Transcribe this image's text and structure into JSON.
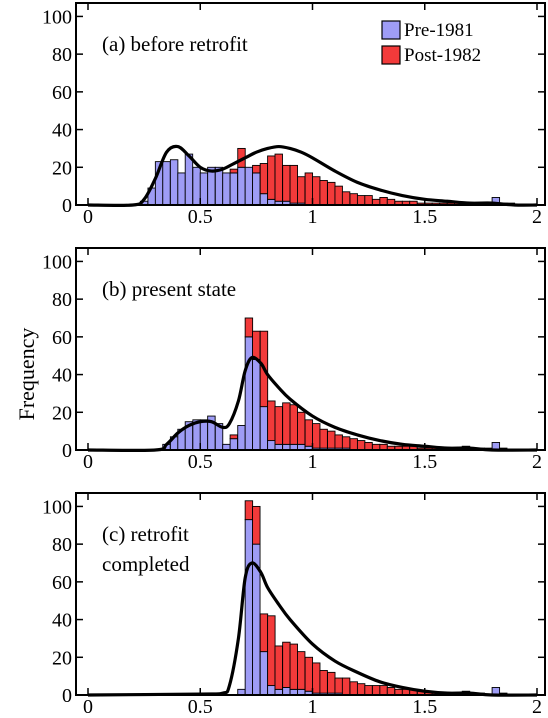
{
  "ylabel": "Frequency",
  "legend": [
    {
      "label": "Pre-1981",
      "color": "#9e9cf5"
    },
    {
      "label": "Post-1982",
      "color": "#f23a3a"
    }
  ],
  "curve_color": "#000000",
  "chart_data": [
    {
      "type": "bar",
      "stacked": true,
      "annotation": [
        "(a) before retrofit"
      ],
      "xlim": [
        0,
        2
      ],
      "ylim": [
        0,
        105
      ],
      "xticks": [
        "0",
        "0.5",
        "1",
        "1.5",
        "2"
      ],
      "yticks": [
        "0",
        "20",
        "40",
        "60",
        "80",
        "100"
      ],
      "bin_width": 0.0333,
      "bin_starts": [
        0.2,
        0.233,
        0.267,
        0.3,
        0.333,
        0.367,
        0.4,
        0.433,
        0.467,
        0.5,
        0.533,
        0.567,
        0.6,
        0.633,
        0.667,
        0.7,
        0.733,
        0.767,
        0.8,
        0.833,
        0.867,
        0.9,
        0.933,
        0.967,
        1.0,
        1.033,
        1.067,
        1.1,
        1.133,
        1.167,
        1.2,
        1.233,
        1.267,
        1.3,
        1.333,
        1.367,
        1.4,
        1.433,
        1.467,
        1.5,
        1.533,
        1.567,
        1.6,
        1.633,
        1.667,
        1.7,
        1.733,
        1.767,
        1.8,
        1.833,
        1.867,
        1.9
      ],
      "series": [
        {
          "name": "Pre-1981",
          "values": [
            0,
            2,
            9,
            23,
            23,
            24,
            17,
            27,
            20,
            17,
            20,
            20,
            17,
            17,
            20,
            20,
            17,
            6,
            3,
            2,
            2,
            1,
            1,
            0,
            0,
            0,
            0,
            0,
            0,
            0,
            0,
            0,
            0,
            0,
            0,
            0,
            0,
            0,
            0,
            0,
            0,
            0,
            0,
            0,
            0,
            0,
            0,
            0,
            4,
            1,
            0,
            0
          ]
        },
        {
          "name": "Post-1982",
          "values": [
            0,
            0,
            0,
            0,
            0,
            0,
            0,
            0,
            0,
            0,
            0,
            0,
            0,
            2,
            10,
            0,
            4,
            16,
            23,
            25,
            19,
            20,
            14,
            17,
            15,
            13,
            12,
            10,
            7,
            6,
            5,
            5,
            3,
            4,
            3,
            2,
            2,
            2,
            1,
            1,
            1,
            1,
            1,
            1,
            1,
            1,
            0,
            0,
            0,
            0,
            1,
            0
          ]
        }
      ],
      "fit_curve": {
        "x": [
          0,
          0.2,
          0.25,
          0.3,
          0.35,
          0.4,
          0.45,
          0.5,
          0.55,
          0.6,
          0.65,
          0.7,
          0.75,
          0.8,
          0.85,
          0.9,
          0.95,
          1.0,
          1.1,
          1.2,
          1.3,
          1.4,
          1.5,
          1.6,
          1.7,
          1.8,
          1.9,
          2.0
        ],
        "y": [
          0,
          0,
          3,
          14,
          28,
          31,
          26,
          20,
          18,
          19,
          22,
          25,
          28,
          30,
          31,
          30,
          28,
          25,
          18,
          12,
          8,
          5,
          3,
          2,
          1,
          1,
          0,
          0
        ]
      }
    },
    {
      "type": "bar",
      "stacked": true,
      "annotation": [
        "(b) present state"
      ],
      "xlim": [
        0,
        2
      ],
      "ylim": [
        0,
        105
      ],
      "xticks": [
        "0",
        "0.5",
        "1",
        "1.5",
        "2"
      ],
      "yticks": [
        "0",
        "20",
        "40",
        "60",
        "80",
        "100"
      ],
      "bin_width": 0.0333,
      "bin_starts": [
        0.333,
        0.367,
        0.4,
        0.433,
        0.467,
        0.5,
        0.533,
        0.567,
        0.6,
        0.633,
        0.667,
        0.7,
        0.733,
        0.767,
        0.8,
        0.833,
        0.867,
        0.9,
        0.933,
        0.967,
        1.0,
        1.033,
        1.067,
        1.1,
        1.133,
        1.167,
        1.2,
        1.233,
        1.267,
        1.3,
        1.333,
        1.367,
        1.4,
        1.433,
        1.467,
        1.5,
        1.533,
        1.567,
        1.6,
        1.633,
        1.667,
        1.7,
        1.733,
        1.767,
        1.8,
        1.833,
        1.867,
        1.9
      ],
      "series": [
        {
          "name": "Pre-1981",
          "values": [
            3,
            7,
            11,
            15,
            16,
            16,
            18,
            14,
            3,
            6,
            13,
            60,
            48,
            23,
            5,
            3,
            3,
            3,
            3,
            2,
            1,
            1,
            1,
            1,
            1,
            0,
            0,
            0,
            0,
            0,
            0,
            0,
            0,
            0,
            0,
            0,
            0,
            0,
            0,
            0,
            0,
            0,
            0,
            0,
            4,
            1,
            0,
            0
          ]
        },
        {
          "name": "Post-1982",
          "values": [
            0,
            0,
            0,
            0,
            0,
            0,
            0,
            0,
            0,
            2,
            0,
            10,
            15,
            40,
            21,
            20,
            22,
            21,
            17,
            14,
            13,
            10,
            9,
            7,
            6,
            6,
            5,
            4,
            3,
            3,
            2,
            2,
            2,
            2,
            1,
            1,
            1,
            1,
            1,
            1,
            2,
            0,
            1,
            1,
            0,
            0,
            0,
            0
          ]
        }
      ],
      "fit_curve": {
        "x": [
          0,
          0.3,
          0.35,
          0.4,
          0.45,
          0.5,
          0.55,
          0.6,
          0.63,
          0.67,
          0.7,
          0.73,
          0.77,
          0.8,
          0.85,
          0.9,
          1.0,
          1.1,
          1.2,
          1.3,
          1.4,
          1.5,
          1.6,
          1.7,
          1.8,
          2.0
        ],
        "y": [
          0,
          0,
          3,
          9,
          13,
          15,
          15,
          12,
          14,
          26,
          42,
          49,
          46,
          40,
          33,
          27,
          18,
          12,
          8,
          5,
          3,
          2,
          1,
          1,
          0,
          0
        ]
      }
    },
    {
      "type": "bar",
      "stacked": true,
      "annotation": [
        "(c) retrofit",
        "completed"
      ],
      "xlim": [
        0,
        2
      ],
      "ylim": [
        0,
        105
      ],
      "xticks": [
        "0",
        "0.5",
        "1",
        "1.5",
        "2"
      ],
      "yticks": [
        "0",
        "20",
        "40",
        "60",
        "80",
        "100"
      ],
      "bin_width": 0.0333,
      "bin_starts": [
        0.633,
        0.667,
        0.7,
        0.733,
        0.767,
        0.8,
        0.833,
        0.867,
        0.9,
        0.933,
        0.967,
        1.0,
        1.033,
        1.067,
        1.1,
        1.133,
        1.167,
        1.2,
        1.233,
        1.267,
        1.3,
        1.333,
        1.367,
        1.4,
        1.433,
        1.467,
        1.5,
        1.533,
        1.567,
        1.6,
        1.633,
        1.667,
        1.7,
        1.733,
        1.767,
        1.8,
        1.833,
        1.867,
        1.9
      ],
      "series": [
        {
          "name": "Pre-1981",
          "values": [
            0,
            3,
            93,
            80,
            23,
            5,
            3,
            4,
            3,
            3,
            2,
            1,
            1,
            1,
            1,
            0,
            0,
            0,
            0,
            0,
            0,
            0,
            0,
            0,
            0,
            0,
            0,
            0,
            0,
            0,
            0,
            0,
            0,
            0,
            0,
            4,
            1,
            0,
            0
          ]
        },
        {
          "name": "Post-1982",
          "values": [
            0,
            0,
            10,
            20,
            20,
            37,
            23,
            24,
            24,
            20,
            18,
            16,
            12,
            11,
            8,
            9,
            7,
            6,
            5,
            5,
            5,
            4,
            3,
            3,
            3,
            2,
            2,
            1,
            1,
            1,
            1,
            2,
            1,
            1,
            0,
            0,
            0,
            0,
            0
          ]
        }
      ],
      "fit_curve": {
        "x": [
          0,
          0.5,
          0.6,
          0.63,
          0.67,
          0.7,
          0.73,
          0.77,
          0.8,
          0.85,
          0.9,
          1.0,
          1.1,
          1.2,
          1.3,
          1.4,
          1.5,
          1.6,
          1.7,
          1.8,
          2.0
        ],
        "y": [
          0,
          0.5,
          1,
          5,
          30,
          62,
          70,
          65,
          57,
          48,
          40,
          27,
          18,
          12,
          7,
          4,
          2,
          1,
          1,
          0,
          0
        ]
      }
    }
  ]
}
